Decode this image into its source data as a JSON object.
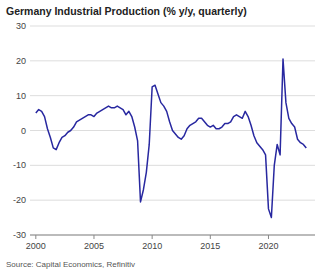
{
  "chart_data": {
    "type": "line",
    "title": "Germany Industrial Production (% y/y, quarterly)",
    "source": "Source: Capital Economics, Refinitiv",
    "color": "#2828a0",
    "grid": true,
    "xlim": [
      1999.5,
      2024.0
    ],
    "xticks": [
      2000,
      2005,
      2010,
      2015,
      2020
    ],
    "ylim": [
      -30,
      30
    ],
    "yticks": [
      -30,
      -20,
      -10,
      0,
      10,
      20,
      30
    ],
    "x": [
      2000.0,
      2000.25,
      2000.5,
      2000.75,
      2001.0,
      2001.25,
      2001.5,
      2001.75,
      2002.0,
      2002.25,
      2002.5,
      2002.75,
      2003.0,
      2003.25,
      2003.5,
      2003.75,
      2004.0,
      2004.25,
      2004.5,
      2004.75,
      2005.0,
      2005.25,
      2005.5,
      2005.75,
      2006.0,
      2006.25,
      2006.5,
      2006.75,
      2007.0,
      2007.25,
      2007.5,
      2007.75,
      2008.0,
      2008.25,
      2008.5,
      2008.75,
      2009.0,
      2009.25,
      2009.5,
      2009.75,
      2010.0,
      2010.25,
      2010.5,
      2010.75,
      2011.0,
      2011.25,
      2011.5,
      2011.75,
      2012.0,
      2012.25,
      2012.5,
      2012.75,
      2013.0,
      2013.25,
      2013.5,
      2013.75,
      2014.0,
      2014.25,
      2014.5,
      2014.75,
      2015.0,
      2015.25,
      2015.5,
      2015.75,
      2016.0,
      2016.25,
      2016.5,
      2016.75,
      2017.0,
      2017.25,
      2017.5,
      2017.75,
      2018.0,
      2018.25,
      2018.5,
      2018.75,
      2019.0,
      2019.25,
      2019.5,
      2019.75,
      2020.0,
      2020.25,
      2020.5,
      2020.75,
      2021.0,
      2021.25,
      2021.5,
      2021.75,
      2022.0,
      2022.25,
      2022.5,
      2022.75,
      2023.0,
      2023.25
    ],
    "values": [
      5.0,
      6.0,
      5.5,
      4.0,
      0.5,
      -2.0,
      -5.0,
      -5.5,
      -3.5,
      -2.0,
      -1.5,
      -0.5,
      0.0,
      1.0,
      2.5,
      3.0,
      3.5,
      4.0,
      4.5,
      4.5,
      4.0,
      5.0,
      5.5,
      6.0,
      6.5,
      7.0,
      6.5,
      6.5,
      7.0,
      6.5,
      6.0,
      4.5,
      5.5,
      4.0,
      1.0,
      -3.0,
      -20.5,
      -17.0,
      -12.0,
      -4.0,
      12.5,
      13.0,
      10.5,
      8.0,
      7.0,
      5.5,
      2.5,
      0.0,
      -1.0,
      -2.0,
      -2.5,
      -1.5,
      0.5,
      1.5,
      2.0,
      2.5,
      3.5,
      3.5,
      2.5,
      1.5,
      1.0,
      1.5,
      0.5,
      0.5,
      1.0,
      2.0,
      2.0,
      2.5,
      4.0,
      4.5,
      4.0,
      3.5,
      5.5,
      4.0,
      1.5,
      -1.5,
      -3.5,
      -4.5,
      -5.5,
      -7.0,
      -22.5,
      -25.0,
      -10.0,
      -4.0,
      -7.0,
      20.5,
      8.0,
      3.5,
      2.0,
      1.0,
      -2.5,
      -3.5,
      -4.0,
      -5.0
    ]
  }
}
